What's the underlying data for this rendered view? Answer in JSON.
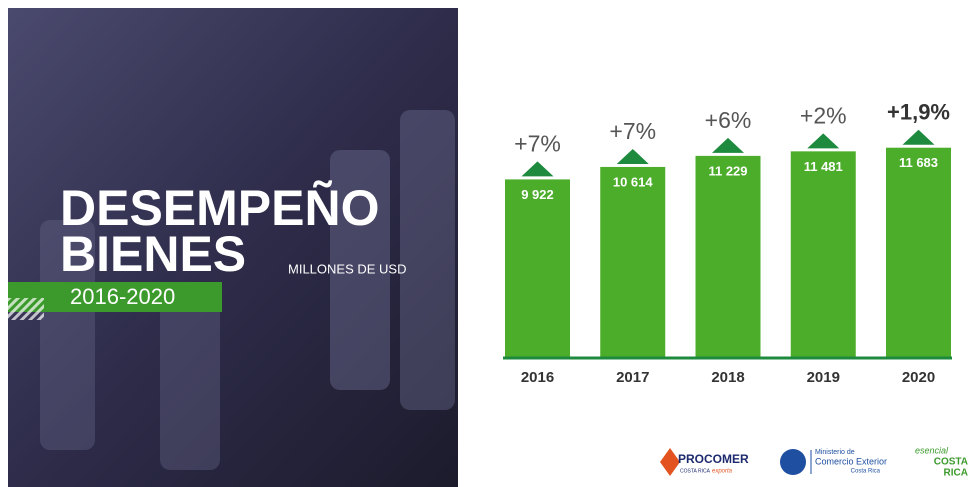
{
  "chart_data": {
    "type": "bar",
    "title": [
      "DESEMPEÑO",
      "BIENES"
    ],
    "subtitle": "MILLONES DE USD",
    "period": "2016-2020",
    "categories": [
      "2016",
      "2017",
      "2018",
      "2019",
      "2020"
    ],
    "values": [
      9922,
      10614,
      11229,
      11481,
      11683
    ],
    "value_labels": [
      "9 922",
      "10 614",
      "11 229",
      "11 481",
      "11 683"
    ],
    "annotations": [
      "+7%",
      "+7%",
      "+6%",
      "+2%",
      "+1,9%"
    ],
    "color": "#4cad2a",
    "logos": {
      "procomer": [
        "PROCOMER",
        "COSTA RICA",
        "exporta"
      ],
      "ministerio": [
        "Ministerio de",
        "Comercio Exterior",
        "Costa Rica"
      ],
      "esencial": [
        "esencial",
        "COSTA",
        "RICA"
      ]
    }
  }
}
